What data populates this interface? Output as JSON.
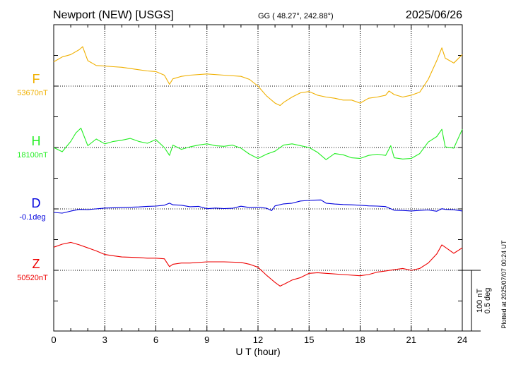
{
  "header": {
    "station": "Newport (NEW)  [USGS]",
    "coords": "GG ( 48.27°, 242.88°)",
    "date": "2025/06/26"
  },
  "footer": {
    "plotted": "Plotted at 2025/07/07 00:24 UT"
  },
  "colors": {
    "F": "#f0b000",
    "H": "#22ee22",
    "D": "#0000dd",
    "Z": "#ee0000",
    "grid": "#000000"
  },
  "chart_data": {
    "type": "line",
    "xlabel": "U T (hour)",
    "xlim": [
      0,
      24
    ],
    "xticks": [
      0,
      3,
      6,
      9,
      12,
      15,
      18,
      21,
      24
    ],
    "grid": true,
    "scale_bar": {
      "label1": "100 nT",
      "label2": "0.5 deg"
    },
    "series": [
      {
        "name": "F",
        "baseline_label": "53670nT",
        "unit": "nT",
        "x": [
          0,
          0.5,
          1,
          1.5,
          1.7,
          2,
          2.5,
          3,
          3.5,
          4,
          5,
          5.5,
          6,
          6.5,
          6.8,
          7,
          7.5,
          8,
          9,
          10,
          11,
          11.5,
          12,
          12.5,
          13,
          13.3,
          13.5,
          14,
          14.5,
          15,
          15.5,
          16,
          16.5,
          17,
          17.5,
          18,
          18.5,
          19,
          19.5,
          19.7,
          20,
          20.5,
          21,
          21.5,
          22,
          22.5,
          22.8,
          23,
          23.5,
          24
        ],
        "values": [
          53710,
          53718,
          53722,
          53730,
          53735,
          53712,
          53704,
          53703,
          53702,
          53701,
          53697,
          53695,
          53694,
          53688,
          53673,
          53682,
          53686,
          53688,
          53690,
          53688,
          53686,
          53681,
          53670,
          53654,
          53642,
          53638,
          53643,
          53652,
          53659,
          53661,
          53655,
          53652,
          53650,
          53647,
          53647,
          53642,
          53650,
          53652,
          53655,
          53662,
          53656,
          53652,
          53655,
          53660,
          53681,
          53712,
          53733,
          53716,
          53708,
          53722
        ]
      },
      {
        "name": "H",
        "baseline_label": "18100nT",
        "unit": "nT",
        "x": [
          0,
          0.5,
          1,
          1.3,
          1.6,
          2,
          2.5,
          3,
          3.5,
          4,
          4.5,
          5,
          5.5,
          6,
          6.5,
          6.8,
          7,
          7.5,
          8,
          8.5,
          9,
          9.5,
          10,
          10.5,
          11,
          11.5,
          12,
          12.5,
          13,
          13.5,
          14,
          14.5,
          15,
          15.5,
          16,
          16.5,
          17,
          17.5,
          18,
          18.5,
          19,
          19.5,
          19.8,
          20,
          20.5,
          21,
          21.5,
          22,
          22.5,
          22.8,
          23,
          23.5,
          24
        ],
        "values": [
          18100,
          18093,
          18110,
          18124,
          18132,
          18103,
          18114,
          18106,
          18110,
          18112,
          18115,
          18110,
          18107,
          18113,
          18100,
          18087,
          18104,
          18097,
          18101,
          18104,
          18106,
          18103,
          18102,
          18104,
          18099,
          18089,
          18082,
          18089,
          18094,
          18104,
          18106,
          18103,
          18100,
          18092,
          18080,
          18090,
          18088,
          18083,
          18082,
          18087,
          18089,
          18087,
          18103,
          18083,
          18081,
          18082,
          18090,
          18109,
          18118,
          18130,
          18101,
          18099,
          18130
        ]
      },
      {
        "name": "D",
        "baseline_label": "-0.1deg",
        "unit": "deg",
        "x": [
          0,
          0.5,
          1,
          1.5,
          2,
          3,
          4,
          5,
          5.5,
          6,
          6.5,
          6.8,
          7,
          7.5,
          8,
          8.5,
          9,
          9.5,
          10,
          10.5,
          11,
          11.5,
          12,
          12.5,
          12.8,
          13,
          13.5,
          14,
          14.5,
          15,
          15.3,
          15.7,
          16,
          16.5,
          17,
          17.5,
          18,
          18.5,
          19,
          19.5,
          20,
          20.5,
          21,
          21.5,
          22,
          22.5,
          22.8,
          23,
          23.5,
          24
        ],
        "values": [
          -0.129,
          -0.135,
          -0.118,
          -0.104,
          -0.106,
          -0.093,
          -0.089,
          -0.084,
          -0.079,
          -0.077,
          -0.07,
          -0.053,
          -0.066,
          -0.07,
          -0.082,
          -0.079,
          -0.098,
          -0.093,
          -0.097,
          -0.095,
          -0.078,
          -0.089,
          -0.086,
          -0.094,
          -0.114,
          -0.075,
          -0.059,
          -0.053,
          -0.035,
          -0.03,
          -0.028,
          -0.026,
          -0.053,
          -0.06,
          -0.064,
          -0.066,
          -0.07,
          -0.075,
          -0.077,
          -0.081,
          -0.111,
          -0.113,
          -0.117,
          -0.112,
          -0.109,
          -0.119,
          -0.098,
          -0.104,
          -0.107,
          -0.117
        ]
      },
      {
        "name": "Z",
        "baseline_label": "50520nT",
        "unit": "nT",
        "x": [
          0,
          0.5,
          1,
          1.5,
          2,
          2.5,
          3,
          3.5,
          4,
          5,
          5.5,
          6,
          6.5,
          6.8,
          7,
          7.5,
          8,
          9,
          10,
          11,
          11.5,
          12,
          12.5,
          13,
          13.3,
          13.6,
          14,
          14.5,
          15,
          15.5,
          16,
          17,
          18,
          18.5,
          19,
          19.5,
          20,
          20.5,
          21,
          21.5,
          22,
          22.5,
          22.8,
          23,
          23.5,
          24
        ],
        "values": [
          50558,
          50563,
          50566,
          50562,
          50557,
          50552,
          50546,
          50544,
          50542,
          50541,
          50540,
          50540,
          50539,
          50526,
          50530,
          50532,
          50532,
          50534,
          50534,
          50533,
          50530,
          50525,
          50512,
          50500,
          50494,
          50498,
          50504,
          50508,
          50515,
          50516,
          50515,
          50513,
          50511,
          50513,
          50517,
          50519,
          50521,
          50523,
          50520,
          50523,
          50532,
          50547,
          50562,
          50558,
          50548,
          50557
        ]
      }
    ]
  }
}
